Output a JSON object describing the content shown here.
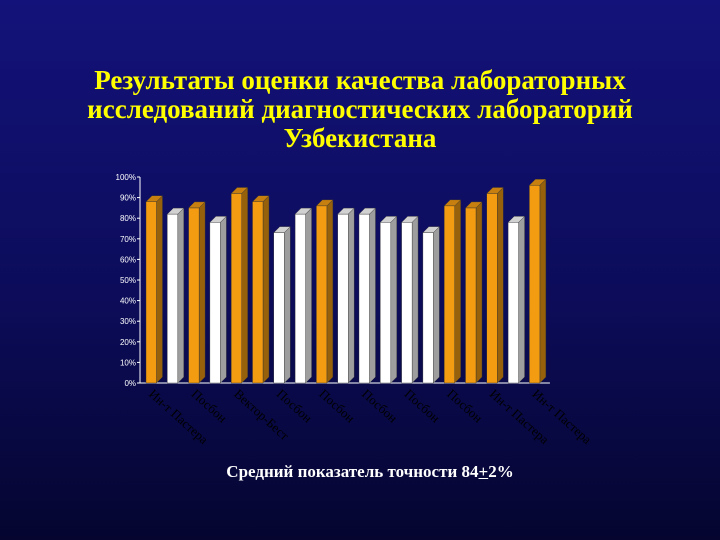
{
  "slide": {
    "title_lines": [
      "Результаты оценки качества лабораторных",
      "исследований диагностических лабораторий",
      "Узбекистана"
    ],
    "subtitle_before": "Средний показатель точности 84",
    "subtitle_pm": "+",
    "subtitle_after": "2%"
  },
  "colors": {
    "highlight_bar": "#f39c12",
    "neutral_bar": "#ffffff",
    "background": "#0c0c5a",
    "title": "#ffff00"
  },
  "chart_data": {
    "type": "bar",
    "title": "",
    "xlabel": "",
    "ylabel": "",
    "ylim": [
      0,
      100
    ],
    "yticks": [
      "0%",
      "10%",
      "20%",
      "30%",
      "40%",
      "50%",
      "60%",
      "70%",
      "80%",
      "90%",
      "100%"
    ],
    "grid": false,
    "values": [
      88,
      82,
      85,
      78,
      92,
      88,
      73,
      82,
      86,
      82,
      82,
      78,
      78,
      73,
      86,
      85,
      92,
      78,
      96
    ],
    "highlighted": [
      true,
      false,
      true,
      false,
      true,
      true,
      false,
      false,
      true,
      false,
      false,
      false,
      false,
      false,
      true,
      true,
      true,
      false,
      true
    ],
    "category_labels": [
      {
        "text": "Ин-т Пастера",
        "bar": 0
      },
      {
        "text": "Посбон",
        "bar": 2
      },
      {
        "text": "Вектор-Бест",
        "bar": 4
      },
      {
        "text": "Посбон",
        "bar": 6
      },
      {
        "text": "Посбон",
        "bar": 8
      },
      {
        "text": "Посбон",
        "bar": 10
      },
      {
        "text": "Посбон",
        "bar": 12
      },
      {
        "text": "Посбон",
        "bar": 14
      },
      {
        "text": "Ин-т Пастера",
        "bar": 16
      },
      {
        "text": "Ин-т Пастера",
        "bar": 18
      }
    ]
  }
}
